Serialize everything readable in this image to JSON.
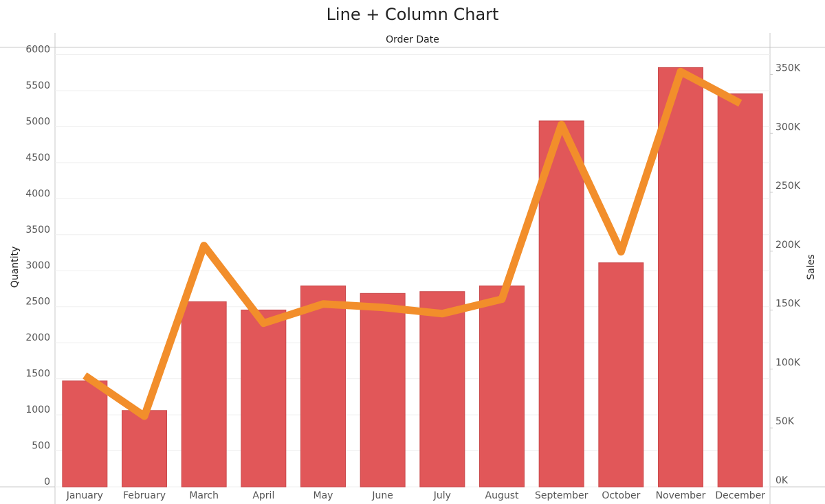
{
  "chart_data": {
    "type": "bar-line",
    "title": "Line + Column Chart",
    "x_title": "Order Date",
    "y_title": "Quantity",
    "y2_title": "Sales",
    "categories": [
      "January",
      "February",
      "March",
      "April",
      "May",
      "June",
      "July",
      "August",
      "September",
      "October",
      "November",
      "December"
    ],
    "series": [
      {
        "name": "Quantity",
        "type": "bar",
        "color": "#e15759",
        "values": [
          1470,
          1060,
          2570,
          2455,
          2790,
          2685,
          2710,
          2790,
          5080,
          3110,
          5820,
          5455
        ]
      },
      {
        "name": "Sales",
        "type": "line",
        "axis": "y2",
        "color": "#f28e2b",
        "values": [
          94500,
          60000,
          204800,
          138900,
          155200,
          152300,
          147000,
          159300,
          307500,
          199500,
          352400,
          325600
        ]
      }
    ],
    "ylim": [
      0,
      6100
    ],
    "yticks": [
      0,
      500,
      1000,
      1500,
      2000,
      2500,
      3000,
      3500,
      4000,
      4500,
      5000,
      5500,
      6000
    ],
    "y2lim": [
      0,
      373000
    ],
    "y2ticks": [
      {
        "value": 0,
        "label": "0K"
      },
      {
        "value": 50000,
        "label": "50K"
      },
      {
        "value": 100000,
        "label": "100K"
      },
      {
        "value": 150000,
        "label": "150K"
      },
      {
        "value": 200000,
        "label": "200K"
      },
      {
        "value": 250000,
        "label": "250K"
      },
      {
        "value": 300000,
        "label": "300K"
      },
      {
        "value": 350000,
        "label": "350K"
      }
    ],
    "grid": true
  }
}
